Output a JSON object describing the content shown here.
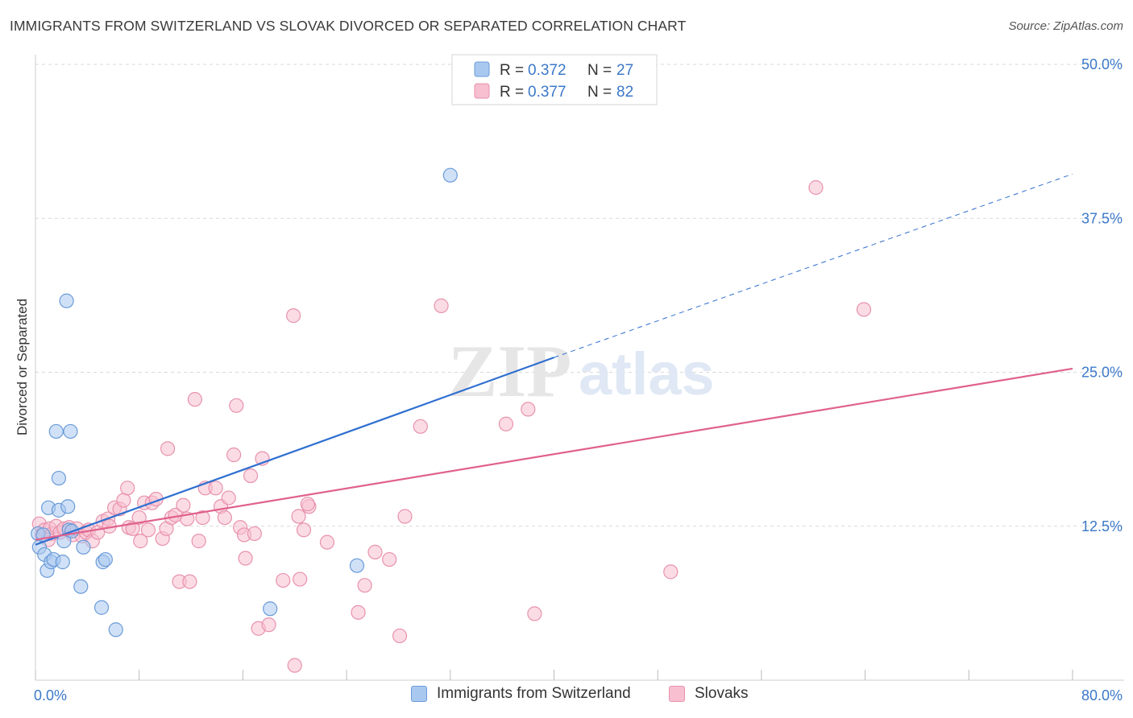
{
  "title": "IMMIGRANTS FROM SWITZERLAND VS SLOVAK DIVORCED OR SEPARATED CORRELATION CHART",
  "source": "Source: ZipAtlas.com",
  "watermark": {
    "zip": "ZIP",
    "atlas": "atlas"
  },
  "colors": {
    "blue_fill": "#a9c8f0",
    "blue_stroke": "#6a9bd8",
    "blue_line": "#2f6fd0",
    "pink_fill": "#f7bfd0",
    "pink_stroke": "#e892ad",
    "pink_line": "#e0618d",
    "tick_text": "#3b78c8",
    "grid": "#d9d9d9"
  },
  "legend": {
    "rows": [
      {
        "r_label": "R =",
        "r_value": "0.372",
        "n_label": "N =",
        "n_value": "27",
        "color": "blue"
      },
      {
        "r_label": "R =",
        "r_value": "0.377",
        "n_label": "N =",
        "n_value": "82",
        "color": "pink"
      }
    ]
  },
  "bottom_legend": [
    {
      "label": "Immigrants from Switzerland",
      "color": "blue"
    },
    {
      "label": "Slovaks",
      "color": "pink"
    }
  ],
  "chart_data": {
    "type": "scatter",
    "title": "IMMIGRANTS FROM SWITZERLAND VS SLOVAK DIVORCED OR SEPARATED CORRELATION CHART",
    "xlabel": "",
    "ylabel": "Divorced or Separated",
    "xlim": [
      0,
      80
    ],
    "ylim": [
      0,
      50
    ],
    "x_tick_labels": [
      {
        "value": 0,
        "label": "0.0%"
      },
      {
        "value": 80,
        "label": "80.0%"
      }
    ],
    "y_tick_labels": [
      {
        "value": 12.5,
        "label": "12.5%"
      },
      {
        "value": 25,
        "label": "25.0%"
      },
      {
        "value": 37.5,
        "label": "37.5%"
      },
      {
        "value": 50,
        "label": "50.0%"
      }
    ],
    "x_minor_ticks": [
      0,
      8,
      16,
      24,
      32,
      40,
      48,
      56,
      64,
      72,
      80
    ],
    "grid": true,
    "series": [
      {
        "name": "Immigrants from Switzerland",
        "color": "blue",
        "points": [
          [
            0.2,
            11.9
          ],
          [
            0.3,
            10.8
          ],
          [
            0.6,
            11.8
          ],
          [
            0.7,
            10.2
          ],
          [
            0.9,
            8.9
          ],
          [
            1.0,
            14.0
          ],
          [
            1.2,
            9.6
          ],
          [
            1.4,
            9.8
          ],
          [
            1.6,
            20.2
          ],
          [
            1.8,
            16.4
          ],
          [
            1.8,
            13.8
          ],
          [
            2.1,
            9.6
          ],
          [
            2.2,
            11.3
          ],
          [
            2.5,
            14.1
          ],
          [
            2.7,
            20.2
          ],
          [
            2.6,
            12.2
          ],
          [
            2.8,
            12.1
          ],
          [
            3.5,
            7.6
          ],
          [
            3.7,
            10.8
          ],
          [
            5.1,
            5.9
          ],
          [
            5.2,
            9.6
          ],
          [
            5.4,
            9.8
          ],
          [
            6.2,
            4.1
          ],
          [
            2.4,
            30.8
          ],
          [
            32.0,
            41.0
          ],
          [
            18.1,
            5.8
          ],
          [
            24.8,
            9.3
          ]
        ],
        "trend": {
          "x0": 0,
          "y0": 11.0,
          "x1": 40,
          "y1": 26.2,
          "dashed_to_x": 80,
          "dashed_to_y": 41.1
        }
      },
      {
        "name": "Slovaks",
        "color": "pink",
        "points": [
          [
            0.3,
            12.7
          ],
          [
            0.5,
            11.8
          ],
          [
            0.7,
            12.2
          ],
          [
            1.1,
            12.3
          ],
          [
            1.3,
            11.9
          ],
          [
            1.6,
            12.5
          ],
          [
            1.9,
            12.0
          ],
          [
            2.2,
            12.3
          ],
          [
            2.6,
            12.4
          ],
          [
            2.9,
            11.8
          ],
          [
            3.2,
            12.3
          ],
          [
            3.6,
            11.7
          ],
          [
            3.9,
            12.0
          ],
          [
            4.1,
            12.2
          ],
          [
            4.4,
            11.3
          ],
          [
            4.8,
            12.0
          ],
          [
            5.2,
            12.9
          ],
          [
            5.6,
            13.1
          ],
          [
            5.7,
            12.5
          ],
          [
            6.1,
            14.0
          ],
          [
            6.5,
            13.9
          ],
          [
            6.8,
            14.6
          ],
          [
            7.2,
            12.4
          ],
          [
            7.1,
            15.6
          ],
          [
            7.5,
            12.3
          ],
          [
            8.0,
            13.2
          ],
          [
            8.1,
            11.3
          ],
          [
            8.4,
            14.4
          ],
          [
            8.7,
            12.2
          ],
          [
            9.0,
            14.4
          ],
          [
            9.3,
            14.7
          ],
          [
            9.8,
            11.5
          ],
          [
            10.1,
            12.3
          ],
          [
            10.2,
            18.8
          ],
          [
            10.5,
            13.2
          ],
          [
            10.8,
            13.4
          ],
          [
            11.1,
            8.0
          ],
          [
            11.4,
            14.2
          ],
          [
            11.7,
            13.1
          ],
          [
            11.9,
            8.0
          ],
          [
            12.3,
            22.8
          ],
          [
            12.6,
            11.3
          ],
          [
            12.9,
            13.2
          ],
          [
            13.1,
            15.6
          ],
          [
            13.9,
            15.6
          ],
          [
            14.3,
            14.1
          ],
          [
            14.6,
            13.2
          ],
          [
            14.9,
            14.8
          ],
          [
            15.3,
            18.3
          ],
          [
            15.5,
            22.3
          ],
          [
            15.8,
            12.4
          ],
          [
            16.1,
            11.8
          ],
          [
            16.2,
            9.9
          ],
          [
            16.6,
            16.6
          ],
          [
            16.9,
            11.9
          ],
          [
            17.2,
            4.2
          ],
          [
            17.5,
            18.0
          ],
          [
            18.0,
            4.5
          ],
          [
            19.1,
            8.1
          ],
          [
            19.9,
            29.6
          ],
          [
            20.3,
            13.3
          ],
          [
            20.4,
            8.2
          ],
          [
            20.7,
            12.2
          ],
          [
            21.1,
            14.1
          ],
          [
            20.0,
            1.2
          ],
          [
            21.0,
            14.3
          ],
          [
            22.5,
            11.2
          ],
          [
            24.9,
            5.5
          ],
          [
            25.4,
            7.7
          ],
          [
            26.2,
            10.4
          ],
          [
            27.3,
            9.8
          ],
          [
            28.1,
            3.6
          ],
          [
            28.5,
            13.3
          ],
          [
            29.7,
            20.6
          ],
          [
            31.3,
            30.4
          ],
          [
            36.3,
            20.8
          ],
          [
            38.0,
            22.0
          ],
          [
            38.5,
            5.4
          ],
          [
            49.0,
            8.8
          ],
          [
            60.2,
            40.0
          ],
          [
            63.9,
            30.1
          ],
          [
            1.0,
            11.4
          ]
        ],
        "trend": {
          "x0": 0,
          "y0": 11.4,
          "x1": 80,
          "y1": 25.3
        }
      }
    ]
  }
}
